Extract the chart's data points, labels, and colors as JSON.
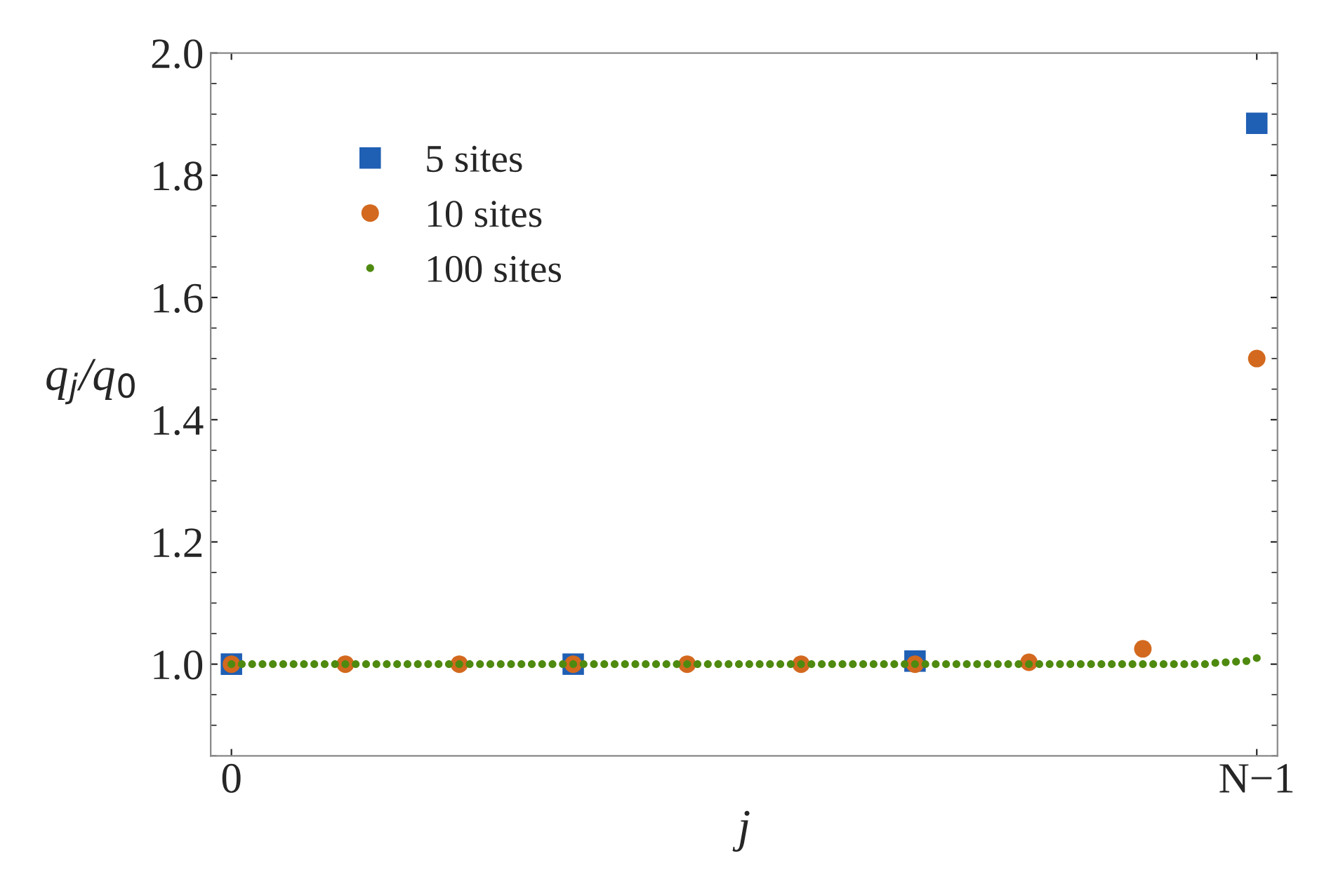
{
  "chart_data": {
    "type": "scatter",
    "xlabel": "j",
    "ylabel": "q$_{j}$/q$_{0}$",
    "categories": [
      "0",
      null,
      null,
      null,
      null,
      null,
      null,
      null,
      null,
      null,
      null,
      null,
      null,
      null,
      null,
      null,
      null,
      null,
      null,
      null,
      null,
      null,
      null,
      null,
      null,
      null,
      null,
      null,
      null,
      null,
      null,
      null,
      null,
      null,
      null,
      null,
      null,
      null,
      null,
      null,
      null,
      null,
      null,
      null,
      null,
      null,
      null,
      null,
      null,
      null,
      null,
      null,
      null,
      null,
      null,
      null,
      null,
      null,
      null,
      null,
      null,
      null,
      null,
      null,
      null,
      null,
      null,
      null,
      null,
      null,
      null,
      null,
      null,
      null,
      null,
      null,
      null,
      null,
      null,
      null,
      null,
      null,
      null,
      null,
      null,
      null,
      null,
      null,
      null,
      null,
      null,
      null,
      null,
      null,
      null,
      null,
      null,
      null,
      null,
      "N−1"
    ],
    "ylim": [
      0.85,
      2.0
    ],
    "yticks": [
      {
        "value": 1.0,
        "label": "1.0"
      },
      {
        "value": 1.2,
        "label": "1.2"
      },
      {
        "value": 1.4,
        "label": "1.4"
      },
      {
        "value": 1.6,
        "label": "1.6"
      },
      {
        "value": 1.8,
        "label": "1.8"
      },
      {
        "value": 2.0,
        "label": "2.0"
      }
    ],
    "legend": "top left",
    "grid": false,
    "series": [
      {
        "name": "5 sites",
        "color": "#1f5fb4",
        "marker": "square",
        "values": [
          1.0,
          null,
          null,
          null,
          null,
          null,
          null,
          null,
          null,
          null,
          null,
          null,
          null,
          null,
          null,
          null,
          null,
          null,
          null,
          null,
          null,
          null,
          null,
          null,
          null,
          null,
          null,
          null,
          null,
          null,
          null,
          null,
          null,
          1.0,
          null,
          null,
          null,
          null,
          null,
          null,
          null,
          null,
          null,
          null,
          null,
          null,
          null,
          null,
          null,
          null,
          null,
          null,
          null,
          null,
          null,
          null,
          null,
          null,
          null,
          null,
          null,
          null,
          null,
          null,
          null,
          null,
          1.005,
          null,
          null,
          null,
          null,
          null,
          null,
          null,
          null,
          null,
          null,
          null,
          null,
          null,
          null,
          null,
          null,
          null,
          null,
          null,
          null,
          null,
          null,
          null,
          null,
          null,
          null,
          null,
          null,
          null,
          null,
          null,
          null,
          1.885
        ]
      },
      {
        "name": "10 sites",
        "color": "#d2691e",
        "marker": "circle",
        "values": [
          1.0,
          null,
          null,
          null,
          null,
          null,
          null,
          null,
          null,
          null,
          null,
          1.0,
          null,
          null,
          null,
          null,
          null,
          null,
          null,
          null,
          null,
          null,
          1.0,
          null,
          null,
          null,
          null,
          null,
          null,
          null,
          null,
          null,
          null,
          1.0,
          null,
          null,
          null,
          null,
          null,
          null,
          null,
          null,
          null,
          null,
          1.0,
          null,
          null,
          null,
          null,
          null,
          null,
          null,
          null,
          null,
          null,
          1.0,
          null,
          null,
          null,
          null,
          null,
          null,
          null,
          null,
          null,
          null,
          1.0,
          null,
          null,
          null,
          null,
          null,
          null,
          null,
          null,
          null,
          null,
          1.003,
          null,
          null,
          null,
          null,
          null,
          null,
          null,
          null,
          null,
          null,
          1.025,
          null,
          null,
          null,
          null,
          null,
          null,
          null,
          null,
          null,
          null,
          1.5
        ]
      },
      {
        "name": "100 sites",
        "color": "#4f8a10",
        "marker": "circle",
        "values": [
          1.0,
          1.0,
          1.0,
          1.0,
          1.0,
          1.0,
          1.0,
          1.0,
          1.0,
          1.0,
          1.0,
          1.0,
          1.0,
          1.0,
          1.0,
          1.0,
          1.0,
          1.0,
          1.0,
          1.0,
          1.0,
          1.0,
          1.0,
          1.0,
          1.0,
          1.0,
          1.0,
          1.0,
          1.0,
          1.0,
          1.0,
          1.0,
          1.0,
          1.0,
          1.0,
          1.0,
          1.0,
          1.0,
          1.0,
          1.0,
          1.0,
          1.0,
          1.0,
          1.0,
          1.0,
          1.0,
          1.0,
          1.0,
          1.0,
          1.0,
          1.0,
          1.0,
          1.0,
          1.0,
          1.0,
          1.0,
          1.0,
          1.0,
          1.0,
          1.0,
          1.0,
          1.0,
          1.0,
          1.0,
          1.0,
          1.0,
          1.0,
          1.0,
          1.0,
          1.0,
          1.0,
          1.0,
          1.0,
          1.0,
          1.0,
          1.0,
          1.0,
          1.0,
          1.0,
          1.0,
          1.0,
          1.0,
          1.0,
          1.0,
          1.0,
          1.0,
          1.0,
          1.0,
          1.0,
          1.0,
          1.0,
          1.0,
          1.0,
          1.0,
          1.0,
          1.002,
          1.003,
          1.004,
          1.005,
          1.01
        ]
      }
    ]
  }
}
